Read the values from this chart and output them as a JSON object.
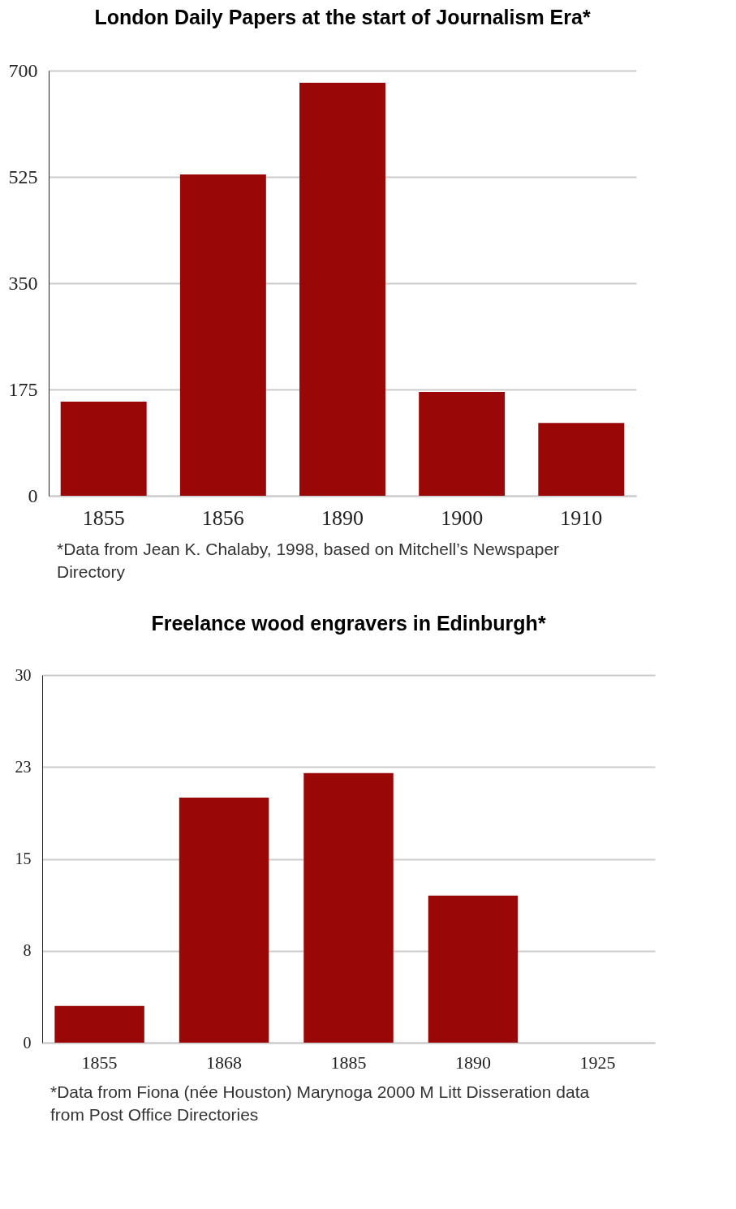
{
  "chart_data": [
    {
      "type": "bar",
      "title": "London Daily Papers at the start of Journalism Era*",
      "categories": [
        "1855",
        "1856",
        "1890",
        "1900",
        "1910"
      ],
      "values": [
        155,
        529,
        680,
        171,
        120
      ],
      "color": "#990707",
      "ylim": [
        0,
        700
      ],
      "yticks": [
        0,
        175,
        350,
        525,
        700
      ],
      "grid": "y",
      "annotations": [
        "*Data from Jean K. Chalaby, 1998, based on Mitchell’s Newspaper Directory"
      ]
    },
    {
      "type": "bar",
      "title": "Freelance wood engravers in Edinburgh*",
      "categories": [
        "1855",
        "1868",
        "1885",
        "1890",
        "1925"
      ],
      "values": [
        3,
        20,
        22,
        12,
        0
      ],
      "color": "#990707",
      "ylim": [
        0,
        30
      ],
      "yticks": [
        0,
        {
          "value": 7.5,
          "label": "8"
        },
        15,
        {
          "value": 22.5,
          "label": "23"
        },
        30
      ],
      "grid": "y",
      "annotations": [
        "*Data from Fiona (née Houston) Marynoga 2000 M Litt Disseration data from Post Office Directories"
      ]
    }
  ]
}
